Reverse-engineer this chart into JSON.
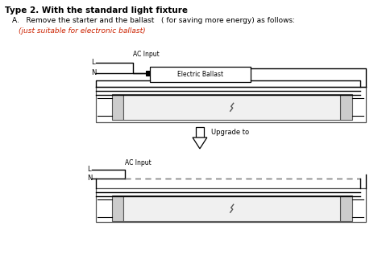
{
  "title": "Type 2. With the standard light fixture",
  "sub1": "A.   Remove the starter and the ballast   ( for saving more energy) as follows:",
  "sub2": "(just suitable for electronic ballast)",
  "ballast_label": "Electric Ballast",
  "ac_input": "AC Input",
  "L": "L",
  "N": "N",
  "upgrade": "Upgrade to",
  "bg": "#ffffff",
  "black": "#000000",
  "red": "#cc2200",
  "gray": "#888888",
  "dgray": "#555555",
  "lw": 1.0
}
